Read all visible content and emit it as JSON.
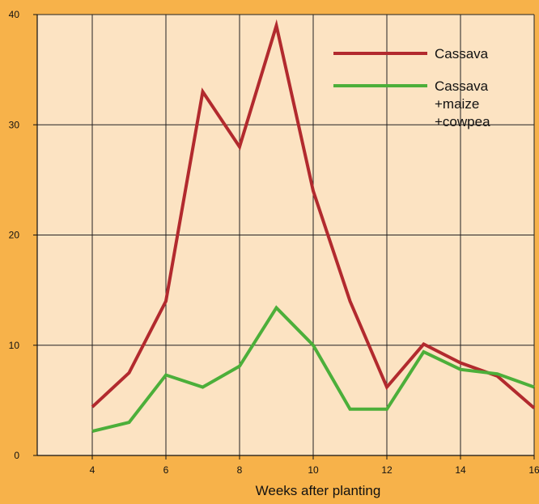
{
  "colors": {
    "page_background": "#f7b24a",
    "plot_background": "#fce3c2",
    "cassava": "#b22a2e",
    "intercrop": "#4caf3a",
    "grid": "#222222"
  },
  "chart_data": {
    "type": "line",
    "title": "",
    "xlabel": "Weeks after planting",
    "ylabel": "",
    "xlim": [
      4,
      16
    ],
    "ylim": [
      0,
      40
    ],
    "xticks": [
      4,
      6,
      8,
      10,
      12,
      14,
      16
    ],
    "yticks": [
      0,
      10,
      20,
      30,
      40
    ],
    "grid": true,
    "legend_position": "top-right",
    "x": [
      4,
      5,
      6,
      7,
      8,
      9,
      10,
      11,
      12,
      13,
      14,
      15,
      16
    ],
    "series": [
      {
        "name": "Cassava",
        "legend_lines": [
          "Cassava"
        ],
        "color": "#b22a2e",
        "values": [
          4.4,
          7.5,
          14,
          33,
          28,
          39,
          24,
          14,
          6.2,
          10.1,
          8.4,
          7.2,
          4.3
        ]
      },
      {
        "name": "Cassava +maize +cowpea",
        "legend_lines": [
          "Cassava",
          "+maize",
          "+cowpea"
        ],
        "color": "#4caf3a",
        "values": [
          2.2,
          3.0,
          7.3,
          6.2,
          8.1,
          13.4,
          10.0,
          4.2,
          4.2,
          9.4,
          7.8,
          7.4,
          6.2
        ]
      }
    ]
  }
}
